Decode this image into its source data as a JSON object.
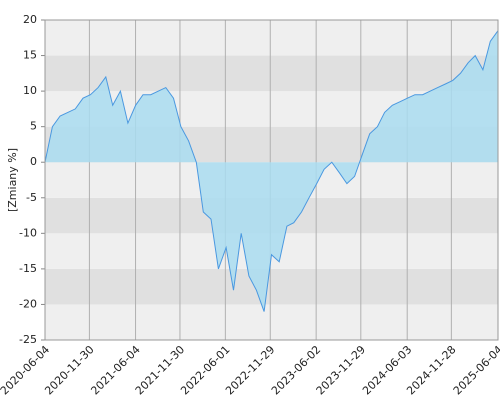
{
  "chart_data": {
    "type": "area",
    "y_label": "[Zmiany %]",
    "x": [
      "2020-06-04",
      "2020-07-04",
      "2020-08-04",
      "2020-09-04",
      "2020-10-04",
      "2020-11-04",
      "2020-12-04",
      "2021-01-04",
      "2021-02-04",
      "2021-03-04",
      "2021-04-04",
      "2021-05-04",
      "2021-06-04",
      "2021-07-04",
      "2021-08-04",
      "2021-09-04",
      "2021-10-04",
      "2021-11-04",
      "2021-12-04",
      "2022-01-04",
      "2022-02-04",
      "2022-03-04",
      "2022-04-04",
      "2022-05-04",
      "2022-06-04",
      "2022-07-04",
      "2022-08-04",
      "2022-09-04",
      "2022-10-04",
      "2022-11-04",
      "2022-12-04",
      "2023-01-04",
      "2023-02-04",
      "2023-03-04",
      "2023-04-04",
      "2023-05-04",
      "2023-06-04",
      "2023-07-04",
      "2023-08-04",
      "2023-09-04",
      "2023-10-04",
      "2023-11-04",
      "2023-12-04",
      "2024-01-04",
      "2024-02-04",
      "2024-03-04",
      "2024-04-04",
      "2024-05-04",
      "2024-06-04",
      "2024-07-04",
      "2024-08-04",
      "2024-09-04",
      "2024-10-04",
      "2024-11-04",
      "2024-12-04",
      "2025-01-04",
      "2025-02-04",
      "2025-03-04",
      "2025-04-04",
      "2025-05-04",
      "2025-06-04"
    ],
    "series": [
      {
        "color": "#4a98e0",
        "fill": "#a9dcf0",
        "values": [
          0,
          5,
          6.5,
          7,
          7.5,
          9,
          9.5,
          10.5,
          12,
          8,
          10,
          5.5,
          8,
          9.5,
          9.5,
          10,
          10.5,
          9,
          5,
          3,
          0,
          -7,
          -8,
          -15,
          -12,
          -18,
          -10,
          -16,
          -18,
          -21,
          -13,
          -14,
          -9,
          -8.5,
          -7,
          -5,
          -3,
          -1,
          0,
          -1.5,
          -3,
          -2,
          1,
          4,
          5,
          7,
          8,
          8.5,
          9,
          9.5,
          9.5,
          10,
          10.5,
          11,
          11.5,
          12.5,
          14,
          15,
          13,
          17,
          18.5
        ]
      }
    ],
    "xlim": [
      "2020-06-04",
      "2025-06-04"
    ],
    "xticks": [
      "2020-06-04",
      "2020-11-30",
      "2021-06-04",
      "2021-11-30",
      "2022-06-01",
      "2022-11-29",
      "2023-06-02",
      "2023-11-29",
      "2024-06-03",
      "2024-11-28",
      "2025-06-04"
    ],
    "ylim": [
      -25,
      20
    ],
    "yticks": [
      -25,
      -20,
      -15,
      -10,
      -5,
      0,
      5,
      10,
      15,
      20
    ],
    "band_colors": [
      "#efefef",
      "#e0e0e0"
    ],
    "grid": true
  }
}
